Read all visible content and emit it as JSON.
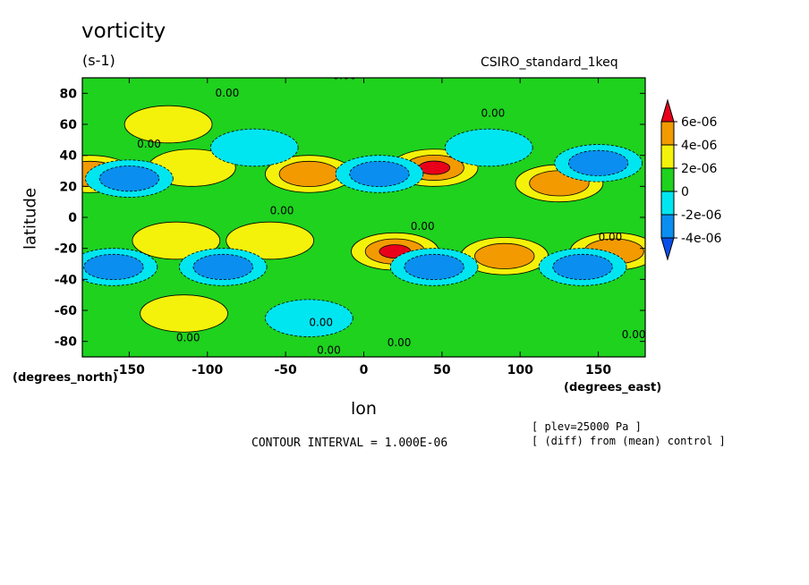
{
  "chart_data": {
    "type": "heatmap",
    "title": "vorticity",
    "units": "(s-1)",
    "model": "CSIRO_standard_1keq",
    "xlabel": "lon",
    "ylabel": "latitude",
    "x_units": "(degrees_east)",
    "y_units": "(degrees_north)",
    "x_ticks": [
      -150,
      -100,
      -50,
      0,
      50,
      100,
      150
    ],
    "y_ticks": [
      -80,
      -60,
      -40,
      -20,
      0,
      20,
      40,
      60,
      80
    ],
    "xlim": [
      -180,
      180
    ],
    "ylim": [
      -90,
      90
    ],
    "contour_interval_text": "CONTOUR INTERVAL = 1.000E-06",
    "contour_label": "0.00",
    "notes": [
      "[ plev=25000 Pa ]",
      "[ (diff) from (mean) control ]"
    ],
    "colorbar": {
      "labels": [
        "6e-06",
        "4e-06",
        "2e-06",
        "0",
        "-2e-06",
        "-4e-06"
      ],
      "colors": [
        "#e8001a",
        "#f29a00",
        "#f4f20a",
        "#1ed21e",
        "#00e6f0",
        "#0a8ef0",
        "#0a50e8"
      ]
    },
    "features": [
      {
        "lon": 20,
        "lat": -22,
        "value": 6e-06
      },
      {
        "lon": 45,
        "lat": 32,
        "value": 6e-06
      },
      {
        "lon": -35,
        "lat": 28,
        "value": 4e-06
      },
      {
        "lon": 125,
        "lat": 22,
        "value": 4e-06
      },
      {
        "lon": -175,
        "lat": 28,
        "value": 4e-06
      },
      {
        "lon": 90,
        "lat": -25,
        "value": 4e-06
      },
      {
        "lon": 160,
        "lat": -22,
        "value": 4e-06
      },
      {
        "lon": -120,
        "lat": -15,
        "value": 2e-06
      },
      {
        "lon": -60,
        "lat": -15,
        "value": 2e-06
      },
      {
        "lon": -110,
        "lat": 32,
        "value": 2e-06
      },
      {
        "lon": -125,
        "lat": 60,
        "value": 2e-06
      },
      {
        "lon": -115,
        "lat": -62,
        "value": 2e-06
      },
      {
        "lon": -150,
        "lat": 25,
        "value": -4e-06
      },
      {
        "lon": -160,
        "lat": -32,
        "value": -4e-06
      },
      {
        "lon": -90,
        "lat": -32,
        "value": -4e-06
      },
      {
        "lon": 45,
        "lat": -32,
        "value": -4e-06
      },
      {
        "lon": 140,
        "lat": -32,
        "value": -4e-06
      },
      {
        "lon": 10,
        "lat": 28,
        "value": -4e-06
      },
      {
        "lon": 150,
        "lat": 35,
        "value": -4e-06
      },
      {
        "lon": -70,
        "lat": 45,
        "value": -2e-06
      },
      {
        "lon": 80,
        "lat": 45,
        "value": -2e-06
      },
      {
        "lon": -35,
        "lat": -65,
        "value": -2e-06
      }
    ]
  }
}
